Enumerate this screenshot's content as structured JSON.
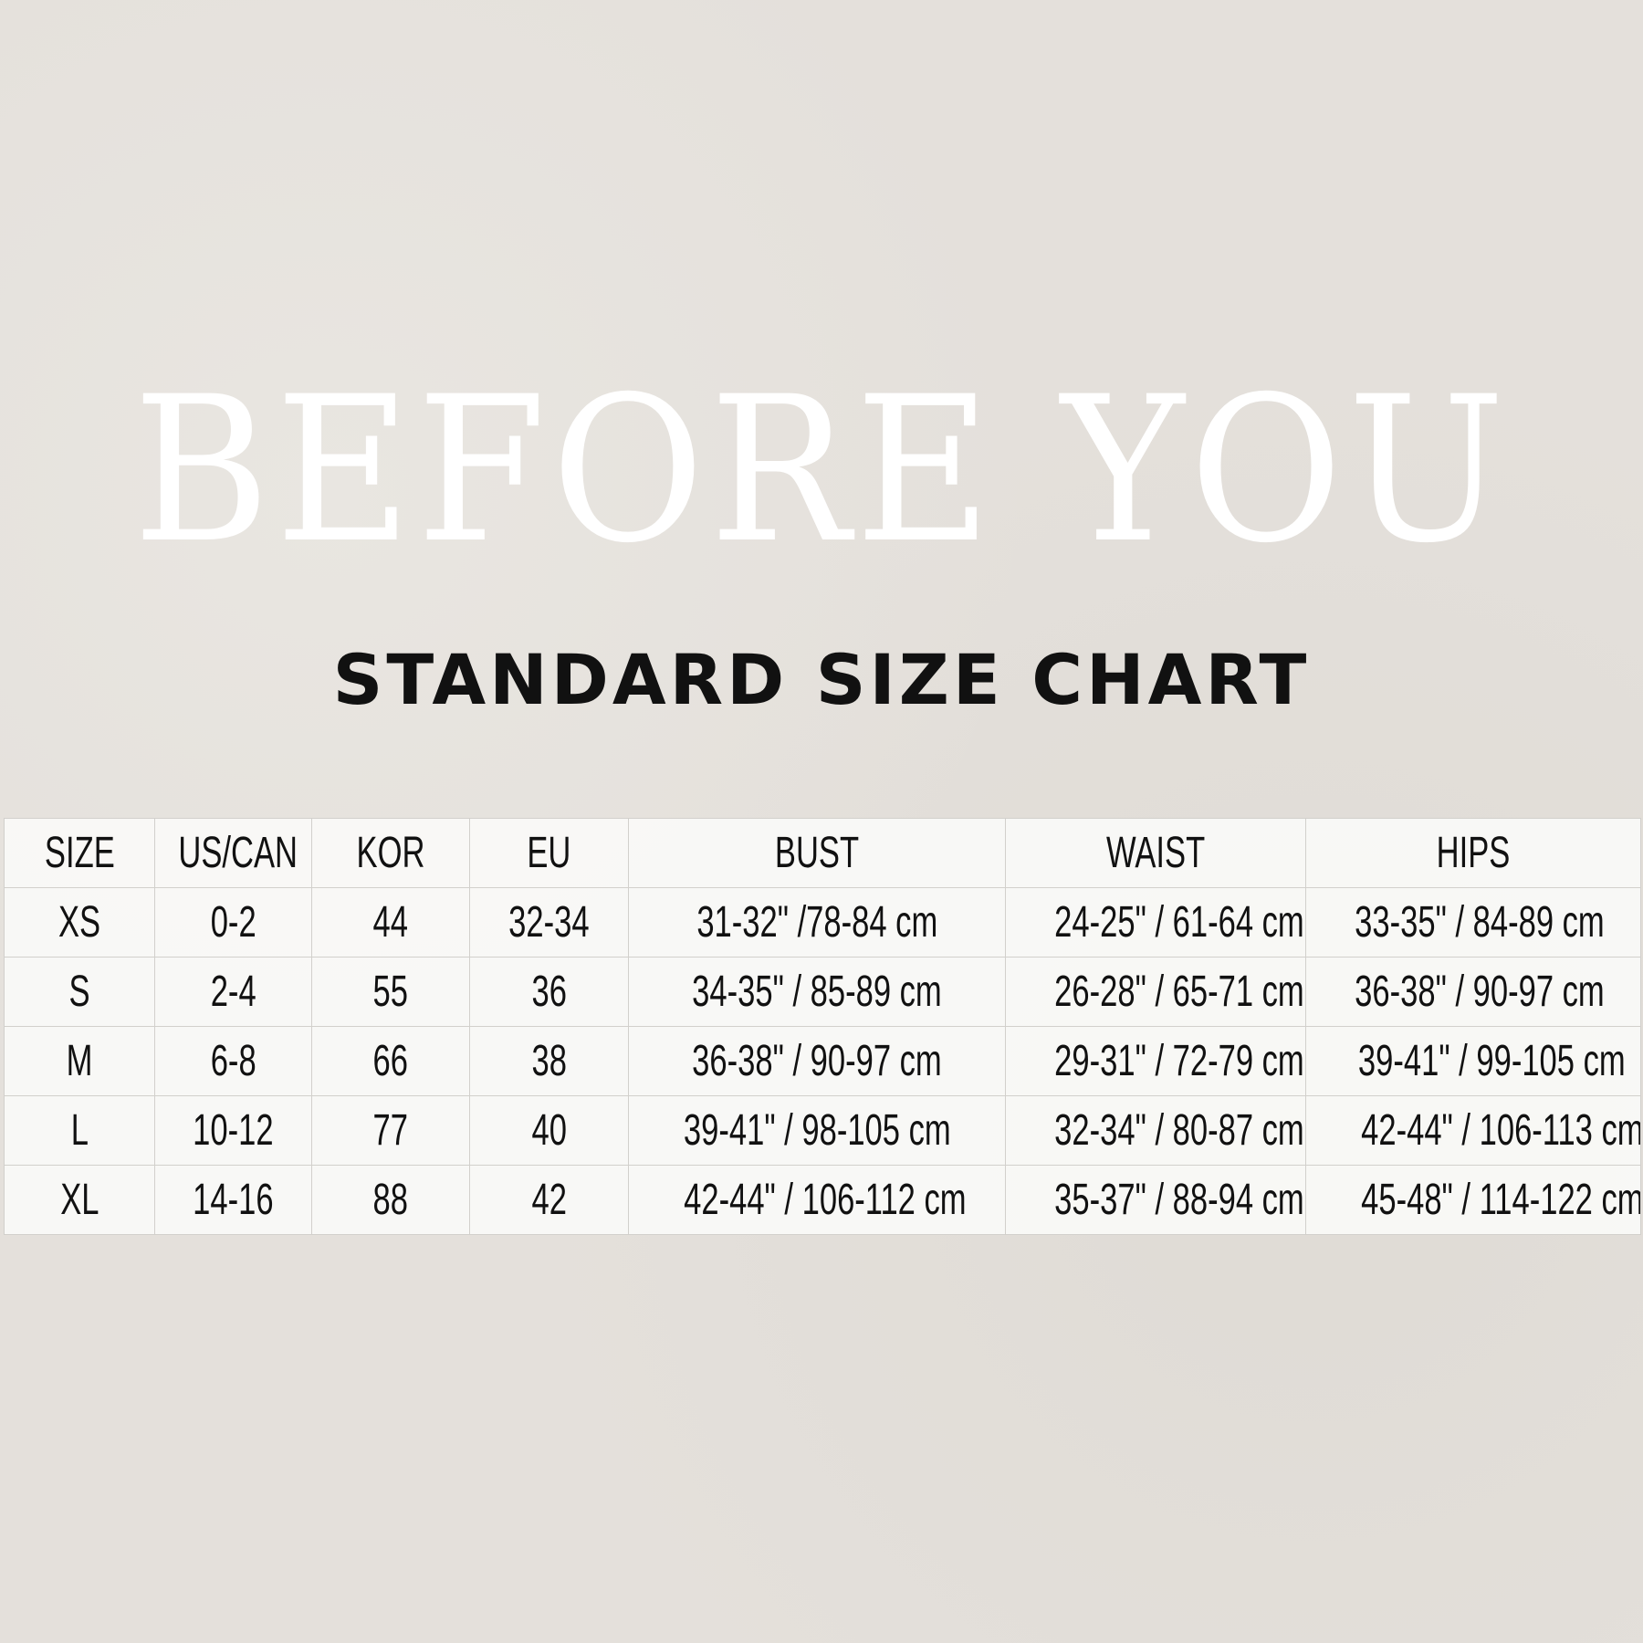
{
  "brand": "BEFORE YOU",
  "subtitle": "STANDARD SIZE CHART",
  "table": {
    "headers": [
      "SIZE",
      "US/CAN",
      "KOR",
      "EU",
      "BUST",
      "WAIST",
      "HIPS"
    ],
    "rows": [
      [
        "XS",
        "0-2",
        "44",
        "32-34",
        "31-32\" /78-84 cm",
        "24-25\" / 61-64 cm",
        "33-35\" / 84-89 cm"
      ],
      [
        "S",
        "2-4",
        "55",
        "36",
        "34-35\" / 85-89 cm",
        "26-28\" / 65-71 cm",
        "36-38\" / 90-97 cm"
      ],
      [
        "M",
        "6-8",
        "66",
        "38",
        "36-38\" / 90-97 cm",
        "29-31\" / 72-79 cm",
        "39-41\" / 99-105 cm"
      ],
      [
        "L",
        "10-12",
        "77",
        "40",
        "39-41\" / 98-105 cm",
        "32-34\" / 80-87 cm",
        "42-44\" / 106-113 cm"
      ],
      [
        "XL",
        "14-16",
        "88",
        "42",
        "42-44\" / 106-112 cm",
        "35-37\" / 88-94 cm",
        "45-48\" / 114-122 cm"
      ]
    ]
  }
}
